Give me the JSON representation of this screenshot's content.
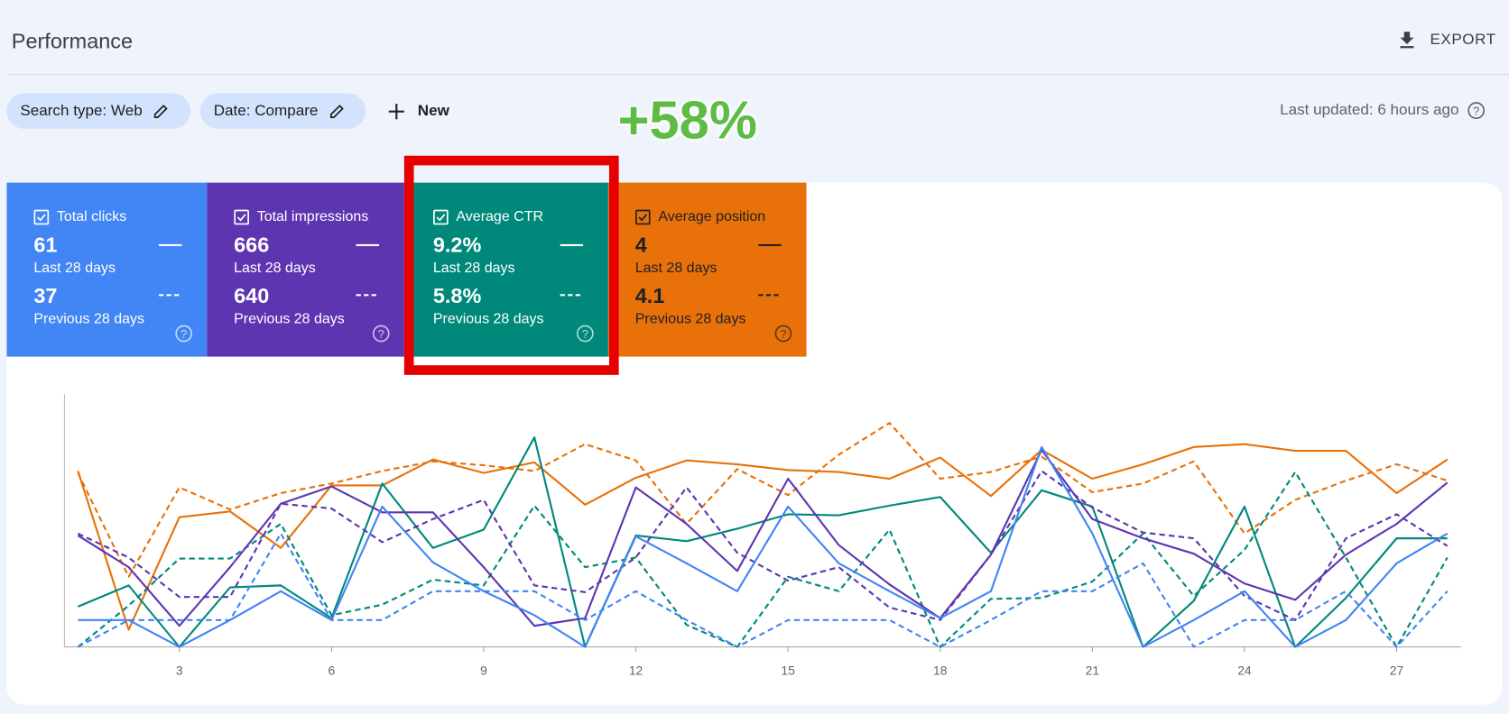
{
  "header": {
    "title": "Performance",
    "export": "EXPORT",
    "last_updated": "Last updated: 6 hours ago"
  },
  "filters": [
    "Search type: Web",
    "Date: Compare",
    "New"
  ],
  "annotation": "+58%",
  "cards": [
    {
      "label": "Total clicks",
      "current": "61",
      "current_period": "Last 28 days",
      "previous": "37",
      "previous_period": "Previous 28 days",
      "color": "#4285f4"
    },
    {
      "label": "Total impressions",
      "current": "666",
      "current_period": "Last 28 days",
      "previous": "640",
      "previous_period": "Previous 28 days",
      "color": "#5e35b1"
    },
    {
      "label": "Average CTR",
      "current": "9.2%",
      "current_period": "Last 28 days",
      "previous": "5.8%",
      "previous_period": "Previous 28 days",
      "color": "#00897b"
    },
    {
      "label": "Average position",
      "current": "4",
      "current_period": "Last 28 days",
      "previous": "4.1",
      "previous_period": "Previous 28 days",
      "color": "#e8710a"
    }
  ],
  "chart_data": {
    "type": "line",
    "x": [
      1,
      2,
      3,
      4,
      5,
      6,
      7,
      8,
      9,
      10,
      11,
      12,
      13,
      14,
      15,
      16,
      17,
      18,
      19,
      20,
      21,
      22,
      23,
      24,
      25,
      26,
      27,
      28
    ],
    "xlim": [
      1,
      28
    ],
    "xticks": [
      3,
      6,
      9,
      12,
      15,
      18,
      21,
      24,
      27
    ],
    "ylim": [
      0,
      265
    ],
    "series": [
      {
        "color": "#e8710a",
        "dashed": false,
        "values": [
          183,
          18,
          135,
          141,
          103,
          168,
          168,
          195,
          181,
          192,
          148,
          176,
          194,
          190,
          184,
          182,
          175,
          197,
          157,
          205,
          175,
          190,
          208,
          211,
          204,
          204,
          160,
          195
        ]
      },
      {
        "color": "#e8710a",
        "dashed": true,
        "values": [
          181,
          73,
          166,
          143,
          160,
          170,
          183,
          193,
          189,
          183,
          211,
          194,
          128,
          185,
          158,
          200,
          233,
          175,
          182,
          198,
          161,
          170,
          193,
          118,
          153,
          173,
          190,
          173
        ]
      },
      {
        "color": "#00897b",
        "dashed": false,
        "values": [
          42,
          64,
          0,
          62,
          64,
          30,
          170,
          103,
          122,
          218,
          0,
          116,
          110,
          123,
          138,
          137,
          147,
          156,
          98,
          163,
          146,
          0,
          48,
          146,
          0,
          51,
          113,
          113
        ]
      },
      {
        "color": "#00897b",
        "dashed": true,
        "values": [
          0,
          43,
          92,
          92,
          128,
          33,
          44,
          70,
          64,
          147,
          83,
          93,
          23,
          0,
          73,
          58,
          122,
          0,
          50,
          51,
          68,
          118,
          53,
          101,
          182,
          93,
          0,
          93
        ]
      },
      {
        "color": "#5e35b1",
        "dashed": false,
        "values": [
          116,
          83,
          22,
          83,
          149,
          167,
          140,
          140,
          83,
          22,
          30,
          166,
          128,
          79,
          175,
          106,
          65,
          30,
          96,
          205,
          133,
          113,
          97,
          66,
          49,
          96,
          128,
          171
        ]
      },
      {
        "color": "#5e35b1",
        "dashed": true,
        "values": [
          118,
          93,
          52,
          52,
          149,
          144,
          109,
          133,
          153,
          64,
          57,
          93,
          166,
          98,
          69,
          83,
          41,
          28,
          96,
          183,
          145,
          119,
          113,
          53,
          28,
          113,
          138,
          105
        ]
      },
      {
        "color": "#4285f4",
        "dashed": false,
        "values": [
          28,
          28,
          0,
          28,
          58,
          28,
          146,
          88,
          58,
          33,
          0,
          115,
          87,
          58,
          146,
          87,
          58,
          30,
          58,
          208,
          118,
          0,
          28,
          58,
          0,
          28,
          87,
          118
        ]
      },
      {
        "color": "#4285f4",
        "dashed": true,
        "values": [
          0,
          28,
          28,
          28,
          118,
          28,
          28,
          58,
          58,
          58,
          28,
          58,
          28,
          0,
          28,
          28,
          28,
          0,
          28,
          58,
          58,
          87,
          0,
          28,
          28,
          58,
          0,
          58
        ]
      }
    ]
  }
}
